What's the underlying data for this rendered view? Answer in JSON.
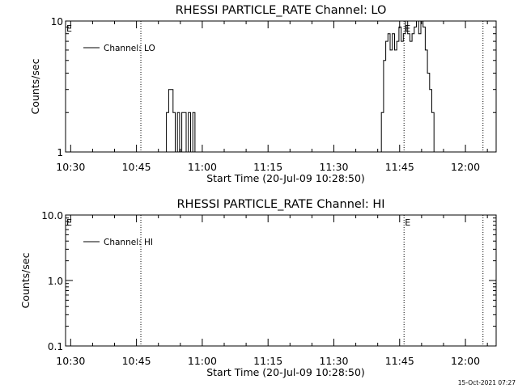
{
  "footer_stamp": "15-Oct-2021 07:27",
  "chart_data": [
    {
      "type": "line",
      "title": "RHESSI PARTICLE_RATE Channel: LO",
      "xlabel": "Start Time (20-Jul-09 10:28:50)",
      "ylabel": "Counts/sec",
      "yscale": "log",
      "ylim": [
        1,
        10
      ],
      "y_ticks": [
        1,
        10
      ],
      "y_tick_labels": [
        "1",
        "10"
      ],
      "xlim": [
        "10:28:50",
        "12:07:00"
      ],
      "x_ticks": [
        "10:30",
        "10:45",
        "11:00",
        "11:15",
        "11:30",
        "11:45",
        "12:00"
      ],
      "legend": {
        "placement": "top-left",
        "entries": [
          "Channel: LO"
        ]
      },
      "series": [
        {
          "name": "Channel: LO",
          "x": [
            "10:51:20",
            "10:51:50",
            "10:52:20",
            "10:52:50",
            "10:53:20",
            "10:53:50",
            "10:54:20",
            "10:54:50",
            "10:55:20",
            "10:55:50",
            "10:56:20",
            "10:56:50",
            "10:57:20",
            "10:57:50",
            "10:58:20",
            "11:40:20",
            "11:40:50",
            "11:41:20",
            "11:41:50",
            "11:42:20",
            "11:42:50",
            "11:43:20",
            "11:43:50",
            "11:44:20",
            "11:44:50",
            "11:45:20",
            "11:45:50",
            "11:46:20",
            "11:46:50",
            "11:47:20",
            "11:47:50",
            "11:48:20",
            "11:48:50",
            "11:49:20",
            "11:49:50",
            "11:50:20",
            "11:50:50",
            "11:51:20",
            "11:51:50",
            "11:52:20",
            "11:52:50",
            "11:53:20"
          ],
          "values": [
            1,
            2,
            3,
            3,
            2,
            1,
            2,
            1,
            2,
            2,
            1,
            2,
            1,
            2,
            1,
            1,
            2,
            5,
            7,
            8,
            6,
            8,
            6,
            7,
            9,
            7,
            8,
            10,
            8,
            7,
            8,
            9,
            10,
            8,
            10,
            9,
            6,
            4,
            3,
            2,
            1,
            1
          ]
        }
      ],
      "markers": [
        {
          "time": "10:46:00",
          "label": ""
        },
        {
          "time": "11:46:00",
          "label": "E"
        },
        {
          "time": "12:04:00",
          "label": ""
        }
      ],
      "edge_label_left": "E"
    },
    {
      "type": "line",
      "title": "RHESSI PARTICLE_RATE Channel: HI",
      "xlabel": "Start Time (20-Jul-09 10:28:50)",
      "ylabel": "Counts/sec",
      "yscale": "log",
      "ylim": [
        0.1,
        10
      ],
      "y_ticks": [
        0.1,
        1,
        10
      ],
      "y_tick_labels": [
        "0.1",
        "1.0",
        "10.0"
      ],
      "xlim": [
        "10:28:50",
        "12:07:00"
      ],
      "x_ticks": [
        "10:30",
        "10:45",
        "11:00",
        "11:15",
        "11:30",
        "11:45",
        "12:00"
      ],
      "legend": {
        "placement": "top-left",
        "entries": [
          "Channel: HI"
        ]
      },
      "series": [
        {
          "name": "Channel: HI",
          "x": [],
          "values": []
        }
      ],
      "markers": [
        {
          "time": "10:46:00",
          "label": ""
        },
        {
          "time": "11:46:00",
          "label": "E"
        },
        {
          "time": "12:04:00",
          "label": ""
        }
      ],
      "edge_label_left": "E"
    }
  ]
}
